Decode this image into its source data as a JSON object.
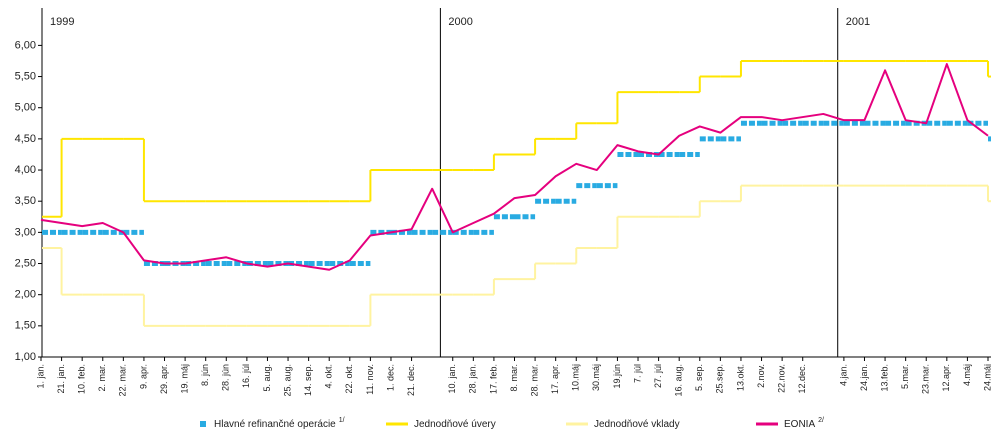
{
  "chart_data": {
    "type": "line",
    "annotations": [
      "1999",
      "2000",
      "2001"
    ],
    "categories": [
      "1. jan.",
      "21. jan.",
      "10. feb.",
      "2. mar.",
      "22. mar.",
      "9. apr.",
      "29. apr.",
      "19. máj",
      "8. jún",
      "28. jún",
      "16. júl",
      "5. aug.",
      "25. aug.",
      "14. sep.",
      "4. okt.",
      "22. okt.",
      "11. nov.",
      "1. dec.",
      "21. dec.",
      null,
      "10. jan.",
      "28. jan.",
      "17. feb.",
      "8. mar.",
      "28. mar.",
      "17. apr.",
      "10.máj",
      "30.máj",
      "19.jún",
      "7. júl",
      "27. júl",
      "16. aug.",
      "5. sep.",
      "25.sep.",
      "13.okt.",
      "2.nov.",
      "22.nov.",
      "12.dec.",
      null,
      "4.jan.",
      "24.jan.",
      "13.feb.",
      "5.mar.",
      "23.mar.",
      "12.apr.",
      "4.máj",
      "24.máj"
    ],
    "series": [
      {
        "name": "Hlavné refinančné operácie",
        "note": "1/",
        "color": "#29abe2",
        "style": "step",
        "dashed": true,
        "values": [
          3,
          3,
          3,
          3,
          3,
          2.5,
          2.5,
          2.5,
          2.5,
          2.5,
          2.5,
          2.5,
          2.5,
          2.5,
          2.5,
          2.5,
          3,
          3,
          3,
          3,
          3,
          3,
          3.25,
          3.25,
          3.5,
          3.5,
          3.75,
          3.75,
          4.25,
          4.25,
          4.25,
          4.25,
          4.5,
          4.5,
          4.75,
          4.75,
          4.75,
          4.75,
          4.75,
          4.75,
          4.75,
          4.75,
          4.75,
          4.75,
          4.75,
          4.75,
          4.5
        ]
      },
      {
        "name": "Jednodňové úvery",
        "color": "#ffe600",
        "style": "step",
        "values": [
          3.25,
          4.5,
          4.5,
          4.5,
          4.5,
          3.5,
          3.5,
          3.5,
          3.5,
          3.5,
          3.5,
          3.5,
          3.5,
          3.5,
          3.5,
          3.5,
          4,
          4,
          4,
          4,
          4,
          4,
          4.25,
          4.25,
          4.5,
          4.5,
          4.75,
          4.75,
          5.25,
          5.25,
          5.25,
          5.25,
          5.5,
          5.5,
          5.75,
          5.75,
          5.75,
          5.75,
          5.75,
          5.75,
          5.75,
          5.75,
          5.75,
          5.75,
          5.75,
          5.75,
          5.5
        ]
      },
      {
        "name": "Jednodňové vklady",
        "color": "#fff3a0",
        "style": "step",
        "values": [
          2.75,
          2,
          2,
          2,
          2,
          1.5,
          1.5,
          1.5,
          1.5,
          1.5,
          1.5,
          1.5,
          1.5,
          1.5,
          1.5,
          1.5,
          2,
          2,
          2,
          2,
          2,
          2,
          2.25,
          2.25,
          2.5,
          2.5,
          2.75,
          2.75,
          3.25,
          3.25,
          3.25,
          3.25,
          3.5,
          3.5,
          3.75,
          3.75,
          3.75,
          3.75,
          3.75,
          3.75,
          3.75,
          3.75,
          3.75,
          3.75,
          3.75,
          3.75,
          3.5
        ]
      },
      {
        "name": "EONIA",
        "note": "2/",
        "color": "#e5007e",
        "style": "line",
        "values": [
          3.2,
          3.15,
          3.1,
          3.15,
          3.0,
          2.55,
          2.5,
          2.5,
          2.55,
          2.6,
          2.5,
          2.45,
          2.5,
          2.45,
          2.4,
          2.55,
          2.95,
          3.0,
          3.05,
          3.7,
          3.0,
          3.15,
          3.3,
          3.55,
          3.6,
          3.9,
          4.1,
          4.0,
          4.4,
          4.3,
          4.25,
          4.55,
          4.7,
          4.6,
          4.85,
          4.85,
          4.8,
          4.85,
          4.9,
          4.8,
          4.8,
          5.6,
          4.8,
          4.75,
          5.7,
          4.8,
          4.55
        ]
      }
    ],
    "ylim": [
      1,
      6.6
    ],
    "yticks": [
      {
        "value": 1,
        "label": "1,00"
      },
      {
        "value": 1.5,
        "label": "1,50"
      },
      {
        "value": 2,
        "label": "2,00"
      },
      {
        "value": 2.5,
        "label": "2,50"
      },
      {
        "value": 3,
        "label": "3,00"
      },
      {
        "value": 3.5,
        "label": "3,50"
      },
      {
        "value": 4,
        "label": "4,00"
      },
      {
        "value": 4.5,
        "label": "4,50"
      },
      {
        "value": 5,
        "label": "5,00"
      },
      {
        "value": 5.5,
        "label": "5,50"
      },
      {
        "value": 6,
        "label": "6,00"
      }
    ],
    "grid": false
  }
}
